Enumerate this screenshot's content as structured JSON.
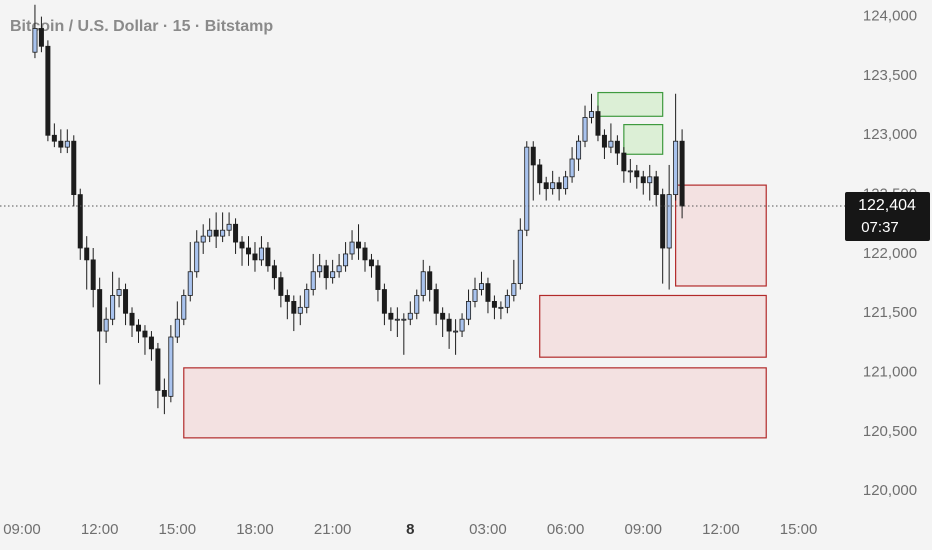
{
  "chart_data": {
    "type": "candlestick",
    "title": "Bitcoin / U.S. Dollar · 15 · Bitstamp",
    "x": [
      9.5,
      9.75,
      10,
      10.25,
      10.5,
      10.75,
      11,
      11.25,
      11.5,
      11.75,
      12,
      12.25,
      12.5,
      12.75,
      13,
      13.25,
      13.5,
      13.75,
      14,
      14.25,
      14.5,
      14.75,
      15,
      15.25,
      15.5,
      15.75,
      16,
      16.25,
      16.5,
      16.75,
      17,
      17.25,
      17.5,
      17.75,
      18,
      18.25,
      18.5,
      18.75,
      19,
      19.25,
      19.5,
      19.75,
      20,
      20.25,
      20.5,
      20.75,
      21,
      21.25,
      21.5,
      21.75,
      22,
      22.25,
      22.5,
      22.75,
      23,
      23.25,
      23.5,
      23.75,
      24,
      24.25,
      24.5,
      24.75,
      25,
      25.25,
      25.5,
      25.75,
      26,
      26.25,
      26.5,
      26.75,
      27,
      27.25,
      27.5,
      27.75,
      28,
      28.25,
      28.5,
      28.75,
      29,
      29.25,
      29.5,
      29.75,
      30,
      30.25,
      30.5,
      30.75,
      31,
      31.25,
      31.5,
      31.75,
      32,
      32.25,
      32.5,
      32.75,
      33,
      33.25,
      33.5,
      33.75,
      34,
      34.25,
      34.5
    ],
    "open": [
      123700,
      123900,
      123750,
      123000,
      122950,
      122900,
      122950,
      122500,
      122050,
      121950,
      121700,
      121350,
      121450,
      121650,
      121700,
      121500,
      121400,
      121350,
      121300,
      121200,
      120850,
      120800,
      121300,
      121450,
      121650,
      121850,
      122100,
      122150,
      122200,
      122150,
      122200,
      122250,
      122100,
      122050,
      122000,
      121950,
      122050,
      121900,
      121800,
      121650,
      121600,
      121500,
      121550,
      121700,
      121850,
      121900,
      121800,
      121850,
      121900,
      122000,
      122100,
      122050,
      121950,
      121900,
      121700,
      121500,
      121450,
      121450,
      121450,
      121500,
      121650,
      121850,
      121700,
      121500,
      121450,
      121350,
      121350,
      121450,
      121600,
      121700,
      121750,
      121600,
      121550,
      121550,
      121650,
      121750,
      122200,
      122900,
      122750,
      122600,
      122550,
      122600,
      122550,
      122650,
      122800,
      122950,
      123150,
      123200,
      123000,
      122900,
      122950,
      122850,
      122700,
      122700,
      122650,
      122600,
      122650,
      122500,
      122050,
      122500,
      122950
    ],
    "high": [
      124100,
      124000,
      123800,
      123100,
      123050,
      123050,
      123000,
      122550,
      122150,
      122050,
      121800,
      121550,
      121850,
      121800,
      121750,
      121550,
      121450,
      121400,
      121350,
      121250,
      120950,
      121400,
      121600,
      121700,
      122100,
      122200,
      122250,
      122300,
      122350,
      122350,
      122350,
      122300,
      122150,
      122150,
      122100,
      122150,
      122100,
      121950,
      121850,
      121700,
      121650,
      121650,
      121750,
      122000,
      122000,
      121950,
      121950,
      122000,
      122100,
      122200,
      122250,
      122100,
      122000,
      121950,
      121750,
      121550,
      121550,
      121500,
      121600,
      121700,
      121950,
      121900,
      121750,
      121550,
      121500,
      121450,
      121500,
      121700,
      121800,
      121850,
      121800,
      121650,
      121600,
      121700,
      121950,
      122300,
      122950,
      122950,
      122800,
      122650,
      122700,
      122650,
      122700,
      122900,
      123000,
      123250,
      123350,
      123250,
      123050,
      123100,
      123000,
      122900,
      122800,
      122750,
      122700,
      122750,
      122700,
      122550,
      122750,
      123350,
      123050
    ],
    "low": [
      123650,
      123700,
      122950,
      122900,
      122850,
      122850,
      122400,
      121950,
      121700,
      121550,
      120900,
      121250,
      121400,
      121550,
      121400,
      121300,
      121250,
      121150,
      121100,
      120700,
      120650,
      120750,
      121250,
      121400,
      121600,
      121800,
      122000,
      122100,
      122050,
      122100,
      122150,
      122000,
      121900,
      121900,
      121850,
      121900,
      121850,
      121700,
      121550,
      121450,
      121350,
      121400,
      121500,
      121650,
      121800,
      121700,
      121750,
      121800,
      121850,
      121950,
      121950,
      121850,
      121800,
      121600,
      121400,
      121350,
      121300,
      121150,
      121400,
      121450,
      121600,
      121600,
      121400,
      121300,
      121200,
      121150,
      121300,
      121400,
      121550,
      121650,
      121500,
      121450,
      121450,
      121500,
      121600,
      121700,
      122150,
      122450,
      122500,
      122450,
      122500,
      122450,
      122500,
      122600,
      122700,
      122900,
      123100,
      122950,
      122800,
      122850,
      122750,
      122600,
      122600,
      122550,
      122500,
      122450,
      122400,
      121750,
      121700,
      122450,
      122300
    ],
    "close": [
      123900,
      123750,
      123000,
      122950,
      122900,
      122950,
      122500,
      122050,
      121950,
      121700,
      121350,
      121450,
      121650,
      121700,
      121500,
      121400,
      121350,
      121300,
      121200,
      120850,
      120800,
      121300,
      121450,
      121650,
      121850,
      122100,
      122150,
      122200,
      122150,
      122200,
      122250,
      122100,
      122050,
      122000,
      121950,
      122050,
      121900,
      121800,
      121650,
      121600,
      121500,
      121550,
      121700,
      121850,
      121900,
      121800,
      121850,
      121900,
      122000,
      122100,
      122050,
      121950,
      121900,
      121700,
      121500,
      121450,
      121450,
      121450,
      121500,
      121650,
      121850,
      121700,
      121500,
      121450,
      121350,
      121350,
      121450,
      121600,
      121700,
      121750,
      121600,
      121550,
      121550,
      121650,
      121750,
      122200,
      122900,
      122750,
      122600,
      122550,
      122600,
      122550,
      122650,
      122800,
      122950,
      123150,
      123200,
      123000,
      122900,
      122950,
      122850,
      122700,
      122700,
      122650,
      122600,
      122650,
      122500,
      122050,
      122500,
      122950,
      122404
    ],
    "up_color": "#a9c3ee",
    "down_color": "#1c1c1c",
    "zones": [
      {
        "start": 34.25,
        "end": 37.75,
        "low": 121730,
        "high": 122580,
        "color": "#b22a2a",
        "fill": "#f3e1e1"
      },
      {
        "start": 29,
        "end": 37.75,
        "low": 121130,
        "high": 121650,
        "color": "#b22a2a",
        "fill": "#f3e1e1"
      },
      {
        "start": 15.25,
        "end": 37.75,
        "low": 120450,
        "high": 121040,
        "color": "#b22a2a",
        "fill": "#f3e1e1"
      },
      {
        "start": 31.25,
        "end": 33.75,
        "low": 123160,
        "high": 123360,
        "color": "#3f9a3f",
        "fill": "#dcefd6"
      },
      {
        "start": 32.25,
        "end": 33.75,
        "low": 122840,
        "high": 123090,
        "color": "#3f9a3f",
        "fill": "#dcefd6"
      }
    ],
    "last_price": {
      "value": 122404,
      "label": "122,404"
    },
    "countdown": "07:37",
    "xlim": [
      8.15,
      40.6
    ],
    "ylim": [
      119800,
      124140
    ],
    "xticks": [
      {
        "value": 9,
        "label": "09:00"
      },
      {
        "value": 12,
        "label": "12:00"
      },
      {
        "value": 15,
        "label": "15:00"
      },
      {
        "value": 18,
        "label": "18:00"
      },
      {
        "value": 21,
        "label": "21:00"
      },
      {
        "value": 24,
        "label": "8"
      },
      {
        "value": 27,
        "label": "03:00"
      },
      {
        "value": 30,
        "label": "06:00"
      },
      {
        "value": 33,
        "label": "09:00"
      },
      {
        "value": 36,
        "label": "12:00"
      },
      {
        "value": 39,
        "label": "15:00"
      }
    ],
    "yticks": [
      {
        "value": 120000,
        "label": "120,000"
      },
      {
        "value": 120500,
        "label": "120,500"
      },
      {
        "value": 121000,
        "label": "121,000"
      },
      {
        "value": 121500,
        "label": "121,500"
      },
      {
        "value": 122000,
        "label": "122,000"
      },
      {
        "value": 122500,
        "label": "122,500"
      },
      {
        "value": 123000,
        "label": "123,000"
      },
      {
        "value": 123500,
        "label": "123,500"
      },
      {
        "value": 124000,
        "label": "124,000"
      }
    ]
  }
}
